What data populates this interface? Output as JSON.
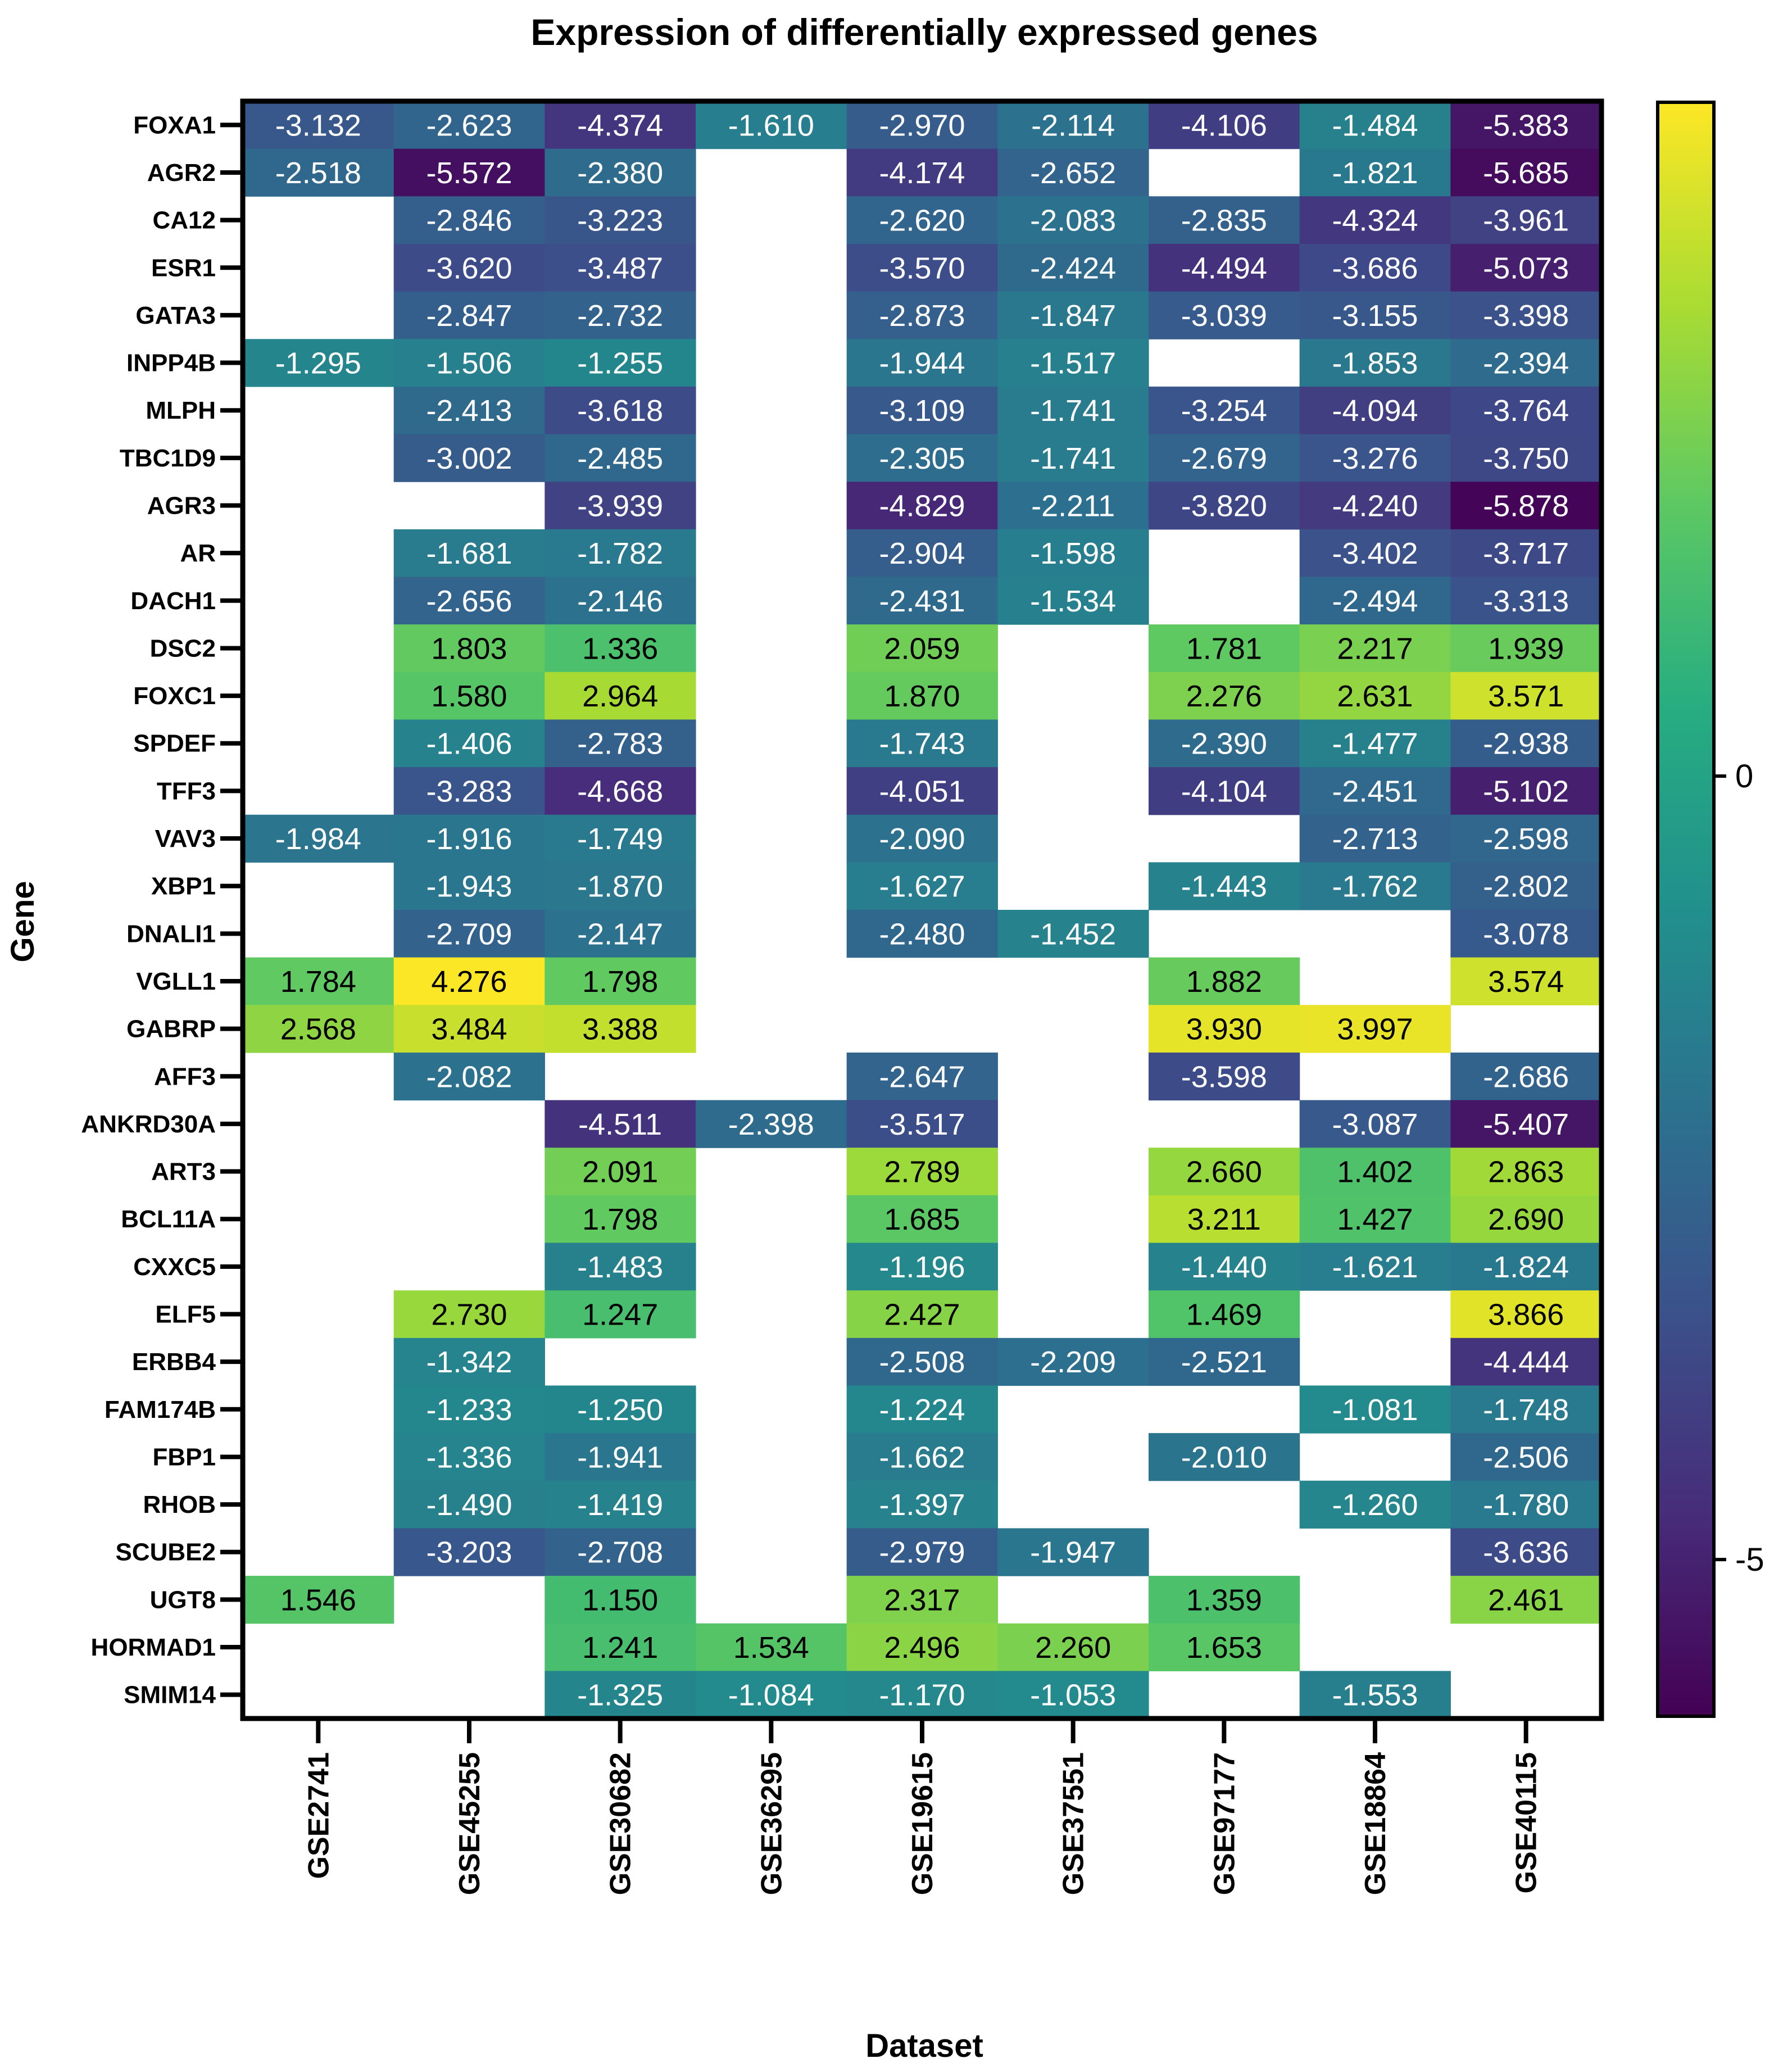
{
  "chart_data": {
    "type": "heatmap",
    "title": "Expression of differentially expressed genes",
    "xlabel": "Dataset",
    "ylabel": "Gene",
    "x": [
      "GSE2741",
      "GSE45255",
      "GSE30682",
      "GSE36295",
      "GSE19615",
      "GSE37551",
      "GSE97177",
      "GSE18864",
      "GSE40115"
    ],
    "y": [
      "FOXA1",
      "AGR2",
      "CA12",
      "ESR1",
      "GATA3",
      "INPP4B",
      "MLPH",
      "TBC1D9",
      "AGR3",
      "AR",
      "DACH1",
      "DSC2",
      "FOXC1",
      "SPDEF",
      "TFF3",
      "VAV3",
      "XBP1",
      "DNALI1",
      "VGLL1",
      "GABRP",
      "AFF3",
      "ANKRD30A",
      "ART3",
      "BCL11A",
      "CXXC5",
      "ELF5",
      "ERBB4",
      "FAM174B",
      "FBP1",
      "RHOB",
      "SCUBE2",
      "UGT8",
      "HORMAD1",
      "SMIM14"
    ],
    "values": [
      [
        "-3.132",
        "-2.623",
        "-4.374",
        "-1.610",
        "-2.970",
        "-2.114",
        "-4.106",
        "-1.484",
        "-5.383"
      ],
      [
        "-2.518",
        "-5.572",
        "-2.380",
        null,
        "-4.174",
        "-2.652",
        null,
        "-1.821",
        "-5.685"
      ],
      [
        null,
        "-2.846",
        "-3.223",
        null,
        "-2.620",
        "-2.083",
        "-2.835",
        "-4.324",
        "-3.961"
      ],
      [
        null,
        "-3.620",
        "-3.487",
        null,
        "-3.570",
        "-2.424",
        "-4.494",
        "-3.686",
        "-5.073"
      ],
      [
        null,
        "-2.847",
        "-2.732",
        null,
        "-2.873",
        "-1.847",
        "-3.039",
        "-3.155",
        "-3.398"
      ],
      [
        "-1.295",
        "-1.506",
        "-1.255",
        null,
        "-1.944",
        "-1.517",
        null,
        "-1.853",
        "-2.394"
      ],
      [
        null,
        "-2.413",
        "-3.618",
        null,
        "-3.109",
        "-1.741",
        "-3.254",
        "-4.094",
        "-3.764"
      ],
      [
        null,
        "-3.002",
        "-2.485",
        null,
        "-2.305",
        "-1.741",
        "-2.679",
        "-3.276",
        "-3.750"
      ],
      [
        null,
        null,
        "-3.939",
        null,
        "-4.829",
        "-2.211",
        "-3.820",
        "-4.240",
        "-5.878"
      ],
      [
        null,
        "-1.681",
        "-1.782",
        null,
        "-2.904",
        "-1.598",
        null,
        "-3.402",
        "-3.717"
      ],
      [
        null,
        "-2.656",
        "-2.146",
        null,
        "-2.431",
        "-1.534",
        null,
        "-2.494",
        "-3.313"
      ],
      [
        null,
        "1.803",
        "1.336",
        null,
        "2.059",
        null,
        "1.781",
        "2.217",
        "1.939"
      ],
      [
        null,
        "1.580",
        "2.964",
        null,
        "1.870",
        null,
        "2.276",
        "2.631",
        "3.571"
      ],
      [
        null,
        "-1.406",
        "-2.783",
        null,
        "-1.743",
        null,
        "-2.390",
        "-1.477",
        "-2.938"
      ],
      [
        null,
        "-3.283",
        "-4.668",
        null,
        "-4.051",
        null,
        "-4.104",
        "-2.451",
        "-5.102"
      ],
      [
        "-1.984",
        "-1.916",
        "-1.749",
        null,
        "-2.090",
        null,
        null,
        "-2.713",
        "-2.598"
      ],
      [
        null,
        "-1.943",
        "-1.870",
        null,
        "-1.627",
        null,
        "-1.443",
        "-1.762",
        "-2.802"
      ],
      [
        null,
        "-2.709",
        "-2.147",
        null,
        "-2.480",
        "-1.452",
        null,
        null,
        "-3.078"
      ],
      [
        "1.784",
        "4.276",
        "1.798",
        null,
        null,
        null,
        "1.882",
        null,
        "3.574"
      ],
      [
        "2.568",
        "3.484",
        "3.388",
        null,
        null,
        null,
        "3.930",
        "3.997",
        null
      ],
      [
        null,
        "-2.082",
        null,
        null,
        "-2.647",
        null,
        "-3.598",
        null,
        "-2.686"
      ],
      [
        null,
        null,
        "-4.511",
        "-2.398",
        "-3.517",
        null,
        null,
        "-3.087",
        "-5.407"
      ],
      [
        null,
        null,
        "2.091",
        null,
        "2.789",
        null,
        "2.660",
        "1.402",
        "2.863"
      ],
      [
        null,
        null,
        "1.798",
        null,
        "1.685",
        null,
        "3.211",
        "1.427",
        "2.690"
      ],
      [
        null,
        null,
        "-1.483",
        null,
        "-1.196",
        null,
        "-1.440",
        "-1.621",
        "-1.824"
      ],
      [
        null,
        "2.730",
        "1.247",
        null,
        "2.427",
        null,
        "1.469",
        null,
        "3.866"
      ],
      [
        null,
        "-1.342",
        null,
        null,
        "-2.508",
        "-2.209",
        "-2.521",
        null,
        "-4.444"
      ],
      [
        null,
        "-1.233",
        "-1.250",
        null,
        "-1.224",
        null,
        null,
        "-1.081",
        "-1.748"
      ],
      [
        null,
        "-1.336",
        "-1.941",
        null,
        "-1.662",
        null,
        "-2.010",
        null,
        "-2.506"
      ],
      [
        null,
        "-1.490",
        "-1.419",
        null,
        "-1.397",
        null,
        null,
        "-1.260",
        "-1.780"
      ],
      [
        null,
        "-3.203",
        "-2.708",
        null,
        "-2.979",
        "-1.947",
        null,
        null,
        "-3.636"
      ],
      [
        "1.546",
        null,
        "1.150",
        null,
        "2.317",
        null,
        "1.359",
        null,
        "2.461"
      ],
      [
        null,
        null,
        "1.241",
        "1.534",
        "2.496",
        "2.260",
        "1.653",
        null,
        null
      ],
      [
        null,
        null,
        "-1.325",
        "-1.084",
        "-1.170",
        "-1.053",
        null,
        "-1.553",
        null
      ]
    ],
    "colorbar": {
      "colormap": "viridis",
      "range": [
        -6,
        4.3
      ],
      "ticks": [
        0,
        -5
      ],
      "tick_labels": [
        "0",
        "-5"
      ]
    }
  }
}
